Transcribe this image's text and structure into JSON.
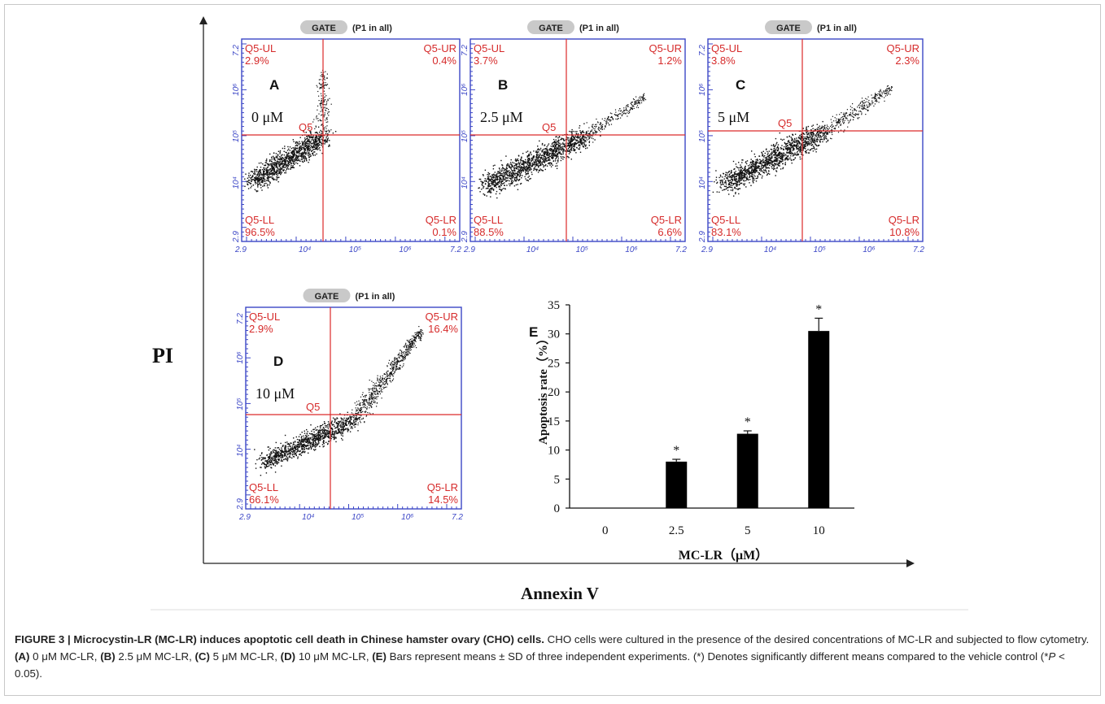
{
  "figure": {
    "y_axis_label": "PI",
    "x_axis_label": "Annexin V",
    "colors": {
      "plot_border": "#3b46c6",
      "quadrant_line": "#dc2a2a",
      "quadrant_text": "#d62b2b",
      "dots": "#111111",
      "gate_badge": "#c9c9c9"
    },
    "gate_badge_label": "GATE",
    "gate_badge_note": "(P1 in all)",
    "axis_min_label": "2.9",
    "axis_max_label": "7.2",
    "tick_labels": [
      "10⁴",
      "10⁵",
      "10⁶"
    ],
    "quad_center_label": "Q5",
    "panels": [
      {
        "letter": "A",
        "dose": "0 μM",
        "UL": [
          "Q5-UL",
          "2.9%"
        ],
        "UR": [
          "Q5-UR",
          "0.4%"
        ],
        "LL": [
          "Q5-LL",
          "96.5%"
        ],
        "LR": [
          "Q5-LR",
          "0.1%"
        ]
      },
      {
        "letter": "B",
        "dose": "2.5 μM",
        "UL": [
          "Q5-UL",
          "3.7%"
        ],
        "UR": [
          "Q5-UR",
          "1.2%"
        ],
        "LL": [
          "Q5-LL",
          "88.5%"
        ],
        "LR": [
          "Q5-LR",
          "6.6%"
        ]
      },
      {
        "letter": "C",
        "dose": "5 μM",
        "UL": [
          "Q5-UL",
          "3.8%"
        ],
        "UR": [
          "Q5-UR",
          "2.3%"
        ],
        "LL": [
          "Q5-LL",
          "83.1%"
        ],
        "LR": [
          "Q5-LR",
          "10.8%"
        ]
      },
      {
        "letter": "D",
        "dose": "10 μM",
        "UL": [
          "Q5-UL",
          "2.9%"
        ],
        "UR": [
          "Q5-UR",
          "16.4%"
        ],
        "LL": [
          "Q5-LL",
          "66.1%"
        ],
        "LR": [
          "Q5-LR",
          "14.5%"
        ]
      }
    ]
  },
  "chart_data": {
    "type": "bar",
    "panel_letter": "E",
    "categories": [
      "0",
      "2.5",
      "5",
      "10"
    ],
    "values": [
      0,
      8,
      12.8,
      30.5
    ],
    "errors": [
      0,
      0.4,
      0.5,
      2.2
    ],
    "significance": [
      "",
      "*",
      "*",
      "*"
    ],
    "xlabel": "MC-LR（μM）",
    "ylabel": "Apoptosis rate（%）",
    "ylim": [
      0,
      35
    ],
    "yticks": [
      "0",
      "5",
      "10",
      "15",
      "20",
      "25",
      "30",
      "35"
    ],
    "bar_color": "#000000",
    "grid": false
  },
  "caption": {
    "title": "FIGURE 3 | Microcystin-LR (MC-LR) induces apoptotic cell death in Chinese hamster ovary (CHO) cells.",
    "body_1": " CHO cells were cultured in the presence of the desired concentrations of MC-LR and subjected to flow cytometry. ",
    "a_ref": "(A)",
    "a_text": " 0 μM MC-LR, ",
    "b_ref": "(B)",
    "b_text": " 2.5 μM MC-LR, ",
    "c_ref": "(C)",
    "c_text": " 5 μM MC-LR, ",
    "d_ref": "(D)",
    "d_text": " 10 μM MC-LR, ",
    "e_ref": "(E)",
    "e_text": " Bars represent means ± SD of three independent experiments. (*) Denotes significantly different means compared to the vehicle control (*",
    "p_symbol": "P",
    "p_tail": " < 0.05)."
  }
}
